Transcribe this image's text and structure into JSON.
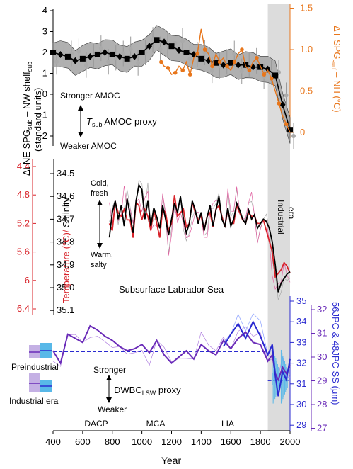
{
  "figure": {
    "x_axis_label": "Year",
    "x_ticks": [
      400,
      600,
      800,
      1000,
      1200,
      1400,
      1600,
      1800,
      2000
    ],
    "industrial_band": [
      1850,
      2000
    ],
    "period_labels": [
      "DACP",
      "MCA",
      "LIA"
    ],
    "colors": {
      "black": "#000000",
      "orange": "#e8761b",
      "red": "#d8232a",
      "purple": "#6a2bb8",
      "blue": "#2a2ad0",
      "grey": "#999999",
      "band": "#dcdcdc",
      "light_blue": "#58b8e8",
      "lavender": "#c4b0e4"
    }
  },
  "panel_top": {
    "ylabel_left_lines": [
      "Δt NE SPG",
      "sub",
      " – NW shelf",
      "sub",
      "(standard units)"
    ],
    "ylabel_right_parts": [
      "ΔT SPG",
      "surf",
      " – NH (°C)"
    ],
    "left_ticks": [
      4,
      3,
      2,
      1,
      0,
      -1,
      -2
    ],
    "right_ticks": [
      "1.5",
      "1.0",
      "0.5",
      "0"
    ],
    "annot_stronger": "Stronger AMOC",
    "annot_weaker": "Weaker AMOC",
    "annot_proxy_t": "T",
    "annot_proxy_sub": "sub",
    "annot_proxy_rest": " AMOC proxy"
  },
  "panel_mid": {
    "ylabel_temp": "Temperature (°C)/",
    "ylabel_sal": " Salinity",
    "temp_ticks": [
      "4.4",
      "4.8",
      "5.2",
      "5.6",
      "6",
      "6.4"
    ],
    "sal_ticks": [
      "34.5",
      "34.6",
      "34.7",
      "34.8",
      "34.9",
      "35.0",
      "35.1"
    ],
    "annot_cold": "Cold,",
    "annot_fresh": "fresh",
    "annot_warm": "Warm,",
    "annot_salty": "salty",
    "label_region": "Subsurface Labrador Sea",
    "label_industrial_1": "Industrial",
    "label_industrial_2": "era"
  },
  "panel_bot": {
    "ylabel_right_1": "56JPC & 48JPC SS (μm)",
    "right_ticks_blue": [
      "35",
      "34",
      "33",
      "32",
      "31",
      "30",
      "29"
    ],
    "right_ticks_purple": [
      "32",
      "31",
      "30",
      "29",
      "28",
      "27"
    ],
    "annot_stronger": "Stronger",
    "annot_weaker": "Weaker",
    "annot_proxy": "DWBC",
    "annot_proxy_sub": "LSW",
    "annot_proxy_rest": " proxy",
    "legend_preindustrial": "Preindustrial",
    "legend_industrial": "Industrial era"
  },
  "chart_data": [
    {
      "type": "line",
      "x": [
        400,
        450,
        500,
        550,
        600,
        650,
        700,
        750,
        800,
        850,
        900,
        950,
        1000,
        1050,
        1100,
        1150,
        1200,
        1250,
        1300,
        1350,
        1400,
        1450,
        1500,
        1550,
        1600,
        1650,
        1700,
        1750,
        1800,
        1850,
        1900,
        1950,
        2000
      ],
      "series": [
        {
          "values": [
            2.0,
            1.9,
            1.8,
            1.6,
            1.7,
            1.8,
            1.9,
            2.0,
            1.9,
            1.8,
            1.7,
            1.8,
            2.0,
            2.3,
            2.6,
            2.5,
            2.3,
            2.1,
            2.0,
            1.9,
            1.7,
            1.6,
            1.5,
            1.4,
            1.5,
            1.4,
            1.4,
            1.3,
            1.3,
            1.2,
            0.9,
            -0.5,
            -1.7
          ]
        }
      ],
      "ylim": [
        -2.2,
        4.2
      ]
    },
    {
      "type": "line",
      "x": [
        1130,
        1150,
        1175,
        1200,
        1225,
        1250,
        1275,
        1300,
        1325,
        1350,
        1375,
        1400,
        1425,
        1450,
        1475,
        1500,
        1525,
        1550,
        1575,
        1600,
        1625,
        1650,
        1675,
        1700,
        1725,
        1750,
        1775,
        1800,
        1825,
        1850,
        1875,
        1900,
        1925,
        1950,
        1975,
        2000
      ],
      "series": [
        {
          "values": [
            0.85,
            0.8,
            0.78,
            0.7,
            0.72,
            0.8,
            0.75,
            0.85,
            0.7,
            0.9,
            0.95,
            1.25,
            1.0,
            0.95,
            0.8,
            0.95,
            0.85,
            0.9,
            0.8,
            0.75,
            0.85,
            0.95,
            1.0,
            0.8,
            0.75,
            0.85,
            0.9,
            0.8,
            0.7,
            0.75,
            0.65,
            0.5,
            0.35,
            0.2,
            0.1,
            0.0
          ]
        }
      ],
      "ylim": [
        -0.2,
        1.5
      ]
    },
    {
      "type": "line",
      "x": [
        780,
        800,
        820,
        840,
        860,
        880,
        900,
        920,
        940,
        960,
        980,
        1000,
        1020,
        1040,
        1060,
        1080,
        1100,
        1120,
        1140,
        1160,
        1180,
        1200,
        1220,
        1240,
        1260,
        1280,
        1300,
        1320,
        1340,
        1360,
        1380,
        1400,
        1420,
        1440,
        1460,
        1480,
        1500,
        1520,
        1540,
        1560,
        1580,
        1600,
        1620,
        1640,
        1660,
        1680,
        1700,
        1720,
        1740,
        1760,
        1780,
        1800,
        1820,
        1840,
        1860,
        1880,
        1900,
        1920,
        1940,
        1960,
        1980,
        2000
      ],
      "series": [
        {
          "values": [
            34.78,
            34.67,
            34.62,
            34.7,
            34.64,
            34.73,
            34.61,
            34.68,
            34.76,
            34.62,
            34.55,
            34.57,
            34.7,
            34.62,
            34.73,
            34.65,
            34.69,
            34.74,
            34.64,
            34.7,
            34.77,
            34.7,
            34.63,
            34.67,
            34.6,
            34.7,
            34.76,
            34.72,
            34.62,
            34.66,
            34.72,
            34.67,
            34.75,
            34.69,
            34.64,
            34.73,
            34.66,
            34.6,
            34.7,
            34.73,
            34.65,
            34.73,
            34.7,
            34.63,
            34.66,
            34.7,
            34.72,
            34.66,
            34.7,
            34.68,
            34.74,
            34.72,
            34.7,
            34.71,
            34.74,
            34.8,
            34.9,
            35.02,
            34.98,
            34.96,
            34.94,
            34.93
          ]
        },
        {
          "values": [
            5.2,
            5.3,
            4.9,
            5.05,
            5.1,
            5.0,
            5.15,
            5.15,
            5.4,
            4.9,
            4.95,
            5.15,
            5.0,
            5.1,
            5.3,
            5.0,
            5.2,
            5.4,
            5.0,
            5.05,
            5.3,
            5.2,
            4.8,
            5.1,
            5.05,
            5.0,
            5.25,
            5.2,
            4.9,
            5.05,
            5.15,
            5.1,
            5.3,
            5.1,
            5.05,
            5.25,
            5.0,
            4.95,
            5.1,
            5.25,
            5.0,
            5.2,
            5.2,
            4.95,
            5.05,
            5.15,
            5.2,
            5.05,
            5.1,
            5.1,
            5.2,
            5.2,
            5.15,
            5.3,
            5.45,
            5.6,
            5.95,
            5.9,
            5.85,
            5.75,
            5.8,
            5.9
          ]
        }
      ],
      "ylim": [
        34.4,
        35.2
      ]
    },
    {
      "type": "line",
      "x": [
        400,
        450,
        500,
        550,
        600,
        650,
        700,
        750,
        800,
        850,
        900,
        950,
        1000,
        1050,
        1100,
        1150,
        1200,
        1250,
        1300,
        1350,
        1400,
        1450,
        1500,
        1550,
        1600,
        1650,
        1700,
        1750,
        1800,
        1850,
        1880,
        1900,
        1920,
        1950,
        1975,
        2000
      ],
      "series": [
        {
          "values": [
            32.6,
            32.0,
            33.4,
            33.2,
            33.0,
            33.8,
            33.6,
            33.3,
            33.1,
            32.8,
            32.6,
            32.7,
            32.9,
            32.5,
            33.1,
            32.4,
            32.0,
            32.3,
            32.6,
            32.2,
            32.9,
            32.6,
            32.4,
            33.1,
            32.7,
            33.2,
            33.5,
            33.0,
            32.9,
            32.1,
            32.4,
            31.5,
            31.2,
            31.8,
            31.5,
            31.9
          ]
        },
        {
          "values": [
            null,
            null,
            null,
            null,
            null,
            null,
            null,
            null,
            null,
            null,
            null,
            null,
            null,
            null,
            null,
            null,
            null,
            null,
            null,
            null,
            null,
            null,
            null,
            32.8,
            33.4,
            33.9,
            33.2,
            34.0,
            33.3,
            32.4,
            32.9,
            31.4,
            30.4,
            31.6,
            31.2,
            32.2
          ]
        }
      ],
      "ylim": [
        29,
        35
      ]
    }
  ]
}
